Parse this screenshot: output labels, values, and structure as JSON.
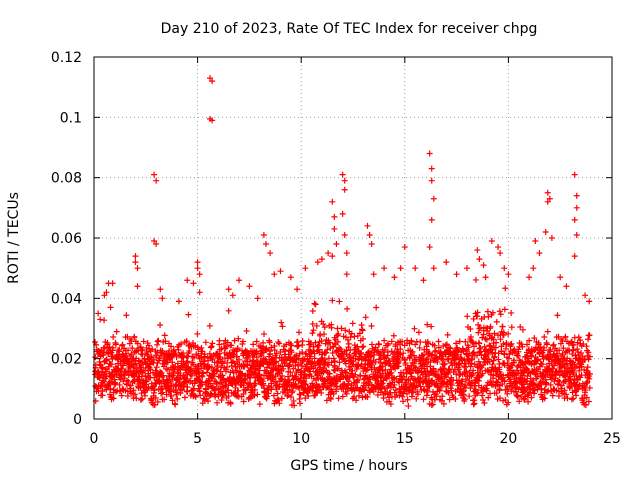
{
  "chart_data": {
    "type": "scatter",
    "title": "Day 210 of 2023, Rate Of TEC Index for receiver chpg",
    "xlabel": "GPS time / hours",
    "ylabel": "ROTI / TECUs",
    "xlim": [
      0,
      25
    ],
    "ylim": [
      0,
      0.12
    ],
    "x_ticks": [
      0,
      5,
      10,
      15,
      20,
      25
    ],
    "x_tick_labels": [
      "0",
      "5",
      "10",
      "15",
      "20",
      "25"
    ],
    "y_ticks": [
      0,
      0.02,
      0.04,
      0.06,
      0.08,
      0.1,
      0.12
    ],
    "y_tick_labels": [
      "0",
      "0.02",
      "0.04",
      "0.06",
      "0.08",
      "0.1",
      "0.12"
    ],
    "grid": true,
    "marker": "+",
    "color": "#ff0000",
    "series": [
      {
        "name": "ROTI",
        "bulk_band": {
          "x_range": [
            0,
            24
          ],
          "typical_y_range": [
            0.004,
            0.03
          ]
        },
        "points": [
          [
            0.2,
            0.035
          ],
          [
            0.3,
            0.033
          ],
          [
            0.5,
            0.041
          ],
          [
            0.6,
            0.042
          ],
          [
            0.7,
            0.045
          ],
          [
            0.9,
            0.045
          ],
          [
            0.8,
            0.037
          ],
          [
            2.0,
            0.054
          ],
          [
            2.0,
            0.052
          ],
          [
            2.1,
            0.05
          ],
          [
            2.1,
            0.044
          ],
          [
            2.9,
            0.081
          ],
          [
            3.0,
            0.079
          ],
          [
            2.9,
            0.059
          ],
          [
            3.0,
            0.058
          ],
          [
            3.2,
            0.043
          ],
          [
            3.3,
            0.04
          ],
          [
            4.1,
            0.039
          ],
          [
            4.5,
            0.046
          ],
          [
            4.8,
            0.045
          ],
          [
            5.0,
            0.052
          ],
          [
            5.0,
            0.05
          ],
          [
            5.1,
            0.048
          ],
          [
            5.1,
            0.042
          ],
          [
            5.6,
            0.113
          ],
          [
            5.7,
            0.112
          ],
          [
            5.6,
            0.0995
          ],
          [
            5.7,
            0.099
          ],
          [
            6.5,
            0.043
          ],
          [
            6.7,
            0.041
          ],
          [
            7.0,
            0.046
          ],
          [
            7.5,
            0.044
          ],
          [
            7.9,
            0.04
          ],
          [
            8.2,
            0.061
          ],
          [
            8.3,
            0.058
          ],
          [
            8.5,
            0.055
          ],
          [
            8.7,
            0.048
          ],
          [
            9.0,
            0.049
          ],
          [
            9.5,
            0.047
          ],
          [
            9.8,
            0.043
          ],
          [
            10.2,
            0.05
          ],
          [
            10.8,
            0.052
          ],
          [
            11.0,
            0.053
          ],
          [
            11.3,
            0.055
          ],
          [
            11.5,
            0.072
          ],
          [
            11.6,
            0.067
          ],
          [
            11.6,
            0.063
          ],
          [
            11.7,
            0.058
          ],
          [
            11.5,
            0.054
          ],
          [
            12.0,
            0.081
          ],
          [
            12.1,
            0.079
          ],
          [
            12.1,
            0.076
          ],
          [
            12.0,
            0.068
          ],
          [
            12.1,
            0.061
          ],
          [
            12.2,
            0.055
          ],
          [
            12.2,
            0.048
          ],
          [
            13.2,
            0.064
          ],
          [
            13.3,
            0.061
          ],
          [
            13.4,
            0.058
          ],
          [
            13.5,
            0.048
          ],
          [
            14.0,
            0.05
          ],
          [
            14.5,
            0.047
          ],
          [
            14.8,
            0.05
          ],
          [
            15.0,
            0.057
          ],
          [
            15.5,
            0.05
          ],
          [
            15.9,
            0.046
          ],
          [
            16.2,
            0.088
          ],
          [
            16.3,
            0.083
          ],
          [
            16.3,
            0.079
          ],
          [
            16.4,
            0.073
          ],
          [
            16.3,
            0.066
          ],
          [
            16.2,
            0.057
          ],
          [
            16.4,
            0.05
          ],
          [
            17.0,
            0.052
          ],
          [
            17.5,
            0.048
          ],
          [
            18.0,
            0.05
          ],
          [
            18.5,
            0.056
          ],
          [
            18.6,
            0.053
          ],
          [
            18.8,
            0.051
          ],
          [
            18.9,
            0.047
          ],
          [
            19.2,
            0.059
          ],
          [
            19.5,
            0.057
          ],
          [
            19.6,
            0.055
          ],
          [
            19.8,
            0.05
          ],
          [
            20.0,
            0.048
          ],
          [
            21.0,
            0.047
          ],
          [
            21.3,
            0.059
          ],
          [
            21.5,
            0.055
          ],
          [
            21.2,
            0.05
          ],
          [
            21.9,
            0.075
          ],
          [
            22.0,
            0.073
          ],
          [
            21.9,
            0.072
          ],
          [
            21.8,
            0.062
          ],
          [
            22.1,
            0.06
          ],
          [
            22.5,
            0.047
          ],
          [
            22.8,
            0.044
          ],
          [
            23.2,
            0.081
          ],
          [
            23.3,
            0.074
          ],
          [
            23.3,
            0.07
          ],
          [
            23.2,
            0.066
          ],
          [
            23.3,
            0.061
          ],
          [
            23.2,
            0.054
          ],
          [
            23.7,
            0.041
          ],
          [
            23.9,
            0.039
          ]
        ]
      }
    ]
  }
}
